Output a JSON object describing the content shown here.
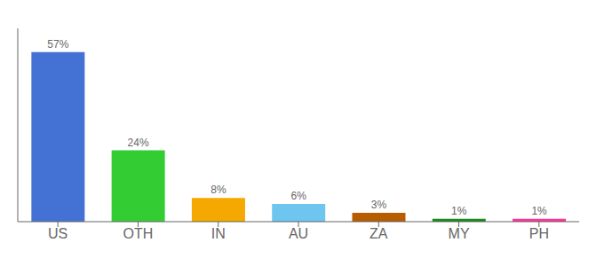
{
  "chart_data": {
    "type": "bar",
    "categories": [
      "US",
      "OTH",
      "IN",
      "AU",
      "ZA",
      "MY",
      "PH"
    ],
    "values": [
      57,
      24,
      8,
      6,
      3,
      1,
      1
    ],
    "value_labels": [
      "57%",
      "24%",
      "8%",
      "6%",
      "3%",
      "1%",
      "1%"
    ],
    "colors": [
      "#4472d4",
      "#33cc33",
      "#f5a800",
      "#6ec6f0",
      "#b85c00",
      "#1a8a1a",
      "#ff3399"
    ],
    "ylim": [
      0,
      65
    ],
    "grid": false,
    "tick_labels": "x"
  }
}
